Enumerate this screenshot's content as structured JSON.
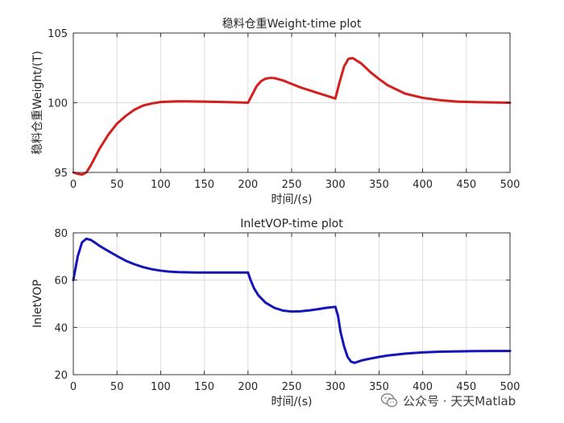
{
  "chart_data": [
    {
      "type": "line",
      "title": "稳料仓重Weight-time plot",
      "xlabel": "时间/(s)",
      "ylabel": "稳料仓重Weight/(T)",
      "xlim": [
        0,
        500
      ],
      "ylim": [
        95,
        105
      ],
      "xticks": [
        0,
        50,
        100,
        150,
        200,
        250,
        300,
        350,
        400,
        450,
        500
      ],
      "yticks": [
        95,
        100,
        105
      ],
      "grid": true,
      "series": [
        {
          "color": "#d41f1f",
          "x": [
            0,
            5,
            10,
            15,
            20,
            30,
            40,
            50,
            60,
            70,
            80,
            90,
            100,
            110,
            120,
            130,
            150,
            170,
            190,
            200,
            205,
            210,
            215,
            220,
            225,
            230,
            240,
            250,
            260,
            270,
            280,
            290,
            300,
            305,
            310,
            315,
            320,
            330,
            340,
            350,
            360,
            380,
            400,
            420,
            440,
            460,
            480,
            500
          ],
          "y": [
            95.0,
            94.9,
            94.85,
            95.0,
            95.5,
            96.7,
            97.7,
            98.5,
            99.05,
            99.5,
            99.8,
            99.95,
            100.05,
            100.08,
            100.1,
            100.1,
            100.08,
            100.05,
            100.02,
            100.0,
            100.6,
            101.2,
            101.55,
            101.72,
            101.78,
            101.77,
            101.6,
            101.35,
            101.1,
            100.9,
            100.7,
            100.5,
            100.3,
            101.5,
            102.6,
            103.15,
            103.2,
            102.8,
            102.2,
            101.7,
            101.25,
            100.65,
            100.35,
            100.18,
            100.08,
            100.04,
            100.02,
            100.0
          ]
        }
      ]
    },
    {
      "type": "line",
      "title": "InletVOP-time plot",
      "xlabel": "时间/(s)",
      "ylabel": "InletVOP",
      "xlim": [
        0,
        500
      ],
      "ylim": [
        20,
        80
      ],
      "xticks": [
        0,
        50,
        100,
        150,
        200,
        250,
        300,
        350,
        400,
        450,
        500
      ],
      "yticks": [
        20,
        40,
        60,
        80
      ],
      "grid": true,
      "series": [
        {
          "color": "#1414b8",
          "x": [
            0,
            5,
            10,
            15,
            20,
            25,
            30,
            40,
            50,
            60,
            70,
            80,
            90,
            100,
            110,
            120,
            140,
            160,
            180,
            200,
            203,
            207,
            212,
            220,
            230,
            240,
            250,
            260,
            270,
            280,
            290,
            300,
            303,
            306,
            310,
            314,
            318,
            322,
            326,
            330,
            340,
            350,
            360,
            380,
            400,
            420,
            440,
            460,
            480,
            500
          ],
          "y": [
            60,
            70,
            76,
            77.5,
            77,
            75.8,
            74.5,
            72.3,
            70.2,
            68.2,
            66.7,
            65.5,
            64.6,
            64,
            63.6,
            63.4,
            63.2,
            63.2,
            63.2,
            63.2,
            60,
            56.5,
            53.5,
            50.5,
            48.3,
            47.1,
            46.7,
            46.8,
            47.2,
            47.7,
            48.3,
            48.7,
            45,
            38,
            32,
            27.5,
            25.5,
            25,
            25.5,
            26,
            26.8,
            27.5,
            28.1,
            28.9,
            29.4,
            29.7,
            29.85,
            29.95,
            30,
            30
          ]
        }
      ]
    }
  ],
  "watermark": {
    "text": "公众号 · 天天Matlab",
    "icon": "wechat-icon"
  }
}
